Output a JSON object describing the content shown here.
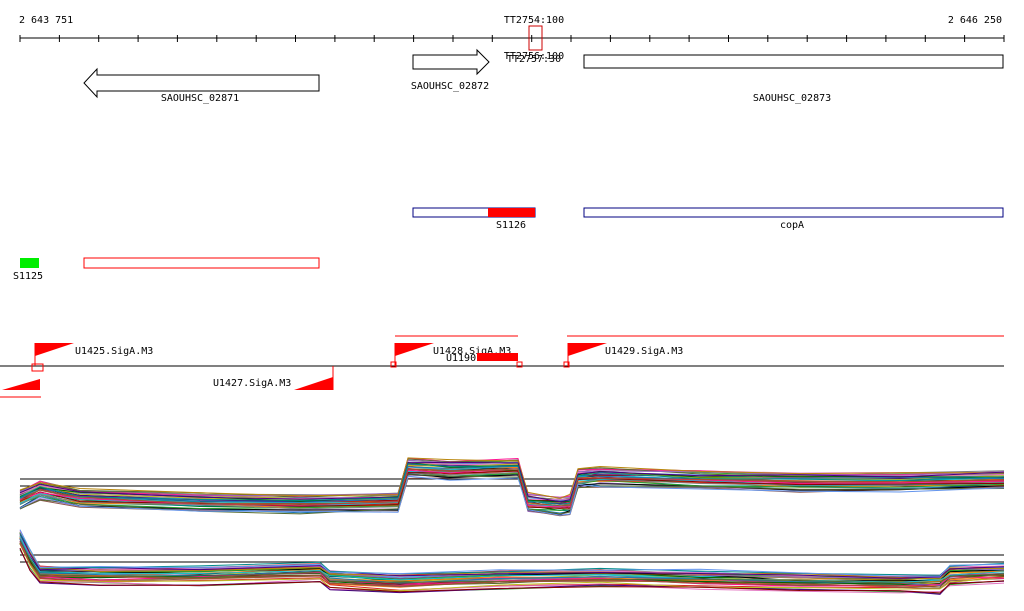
{
  "ruler": {
    "start_label": "2 643 751",
    "end_label": "2 646 250",
    "marker_label": "TT2754:100",
    "marker_overlap_labels": [
      "TT2756:100",
      "TT2757:30"
    ]
  },
  "genes": [
    {
      "label": "SAOUHSC_02871",
      "strand": "-"
    },
    {
      "label": "SAOUHSC_02872",
      "strand": "+"
    },
    {
      "label": "SAOUHSC_02873",
      "strand": "+"
    }
  ],
  "features": [
    {
      "label": "S1126",
      "color": "#ff0000"
    },
    {
      "label": "copA",
      "color": "#000080"
    },
    {
      "label": "S1125",
      "color": "#00ee00"
    }
  ],
  "promoters": [
    {
      "label": "U1425.SigA.M3"
    },
    {
      "label": "U1427.SigA.M3"
    },
    {
      "label": "U1428.SigA.M3"
    },
    {
      "label": "U1190"
    },
    {
      "label": "U1429.SigA.M3"
    }
  ],
  "colors": {
    "gene_outline": "#000000",
    "feature_outline_blue": "#000080",
    "feature_red": "#ff0000",
    "feature_green": "#00ee00",
    "promoter_red": "#ff0000"
  }
}
